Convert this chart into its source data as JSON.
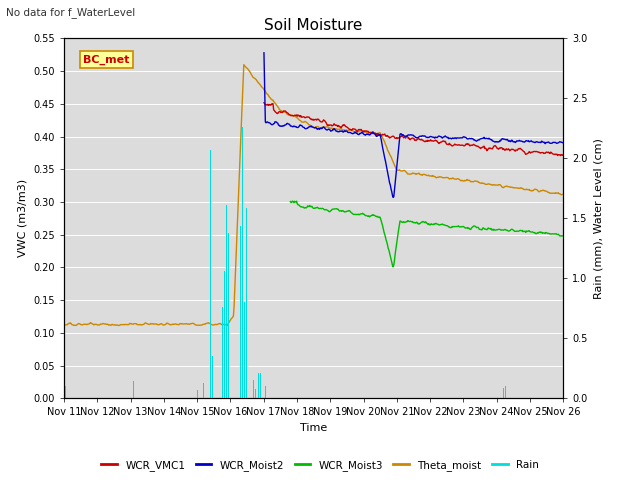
{
  "title": "Soil Moisture",
  "top_left_text": "No data for f_WaterLevel",
  "xlabel": "Time",
  "ylabel_left": "VWC (m3/m3)",
  "ylabel_right": "Rain (mm), Water Level (cm)",
  "ylim_left": [
    0.0,
    0.55
  ],
  "ylim_right": [
    0.0,
    3.0
  ],
  "yticks_left": [
    0.0,
    0.05,
    0.1,
    0.15,
    0.2,
    0.25,
    0.3,
    0.35,
    0.4,
    0.45,
    0.5,
    0.55
  ],
  "yticks_right": [
    0.0,
    0.5,
    1.0,
    1.5,
    2.0,
    2.5,
    3.0
  ],
  "plot_bg_color": "#dcdcdc",
  "legend_entries": [
    "WCR_VMC1",
    "WCR_Moist2",
    "WCR_Moist3",
    "Theta_moist",
    "Rain"
  ],
  "legend_colors": [
    "#cc0000",
    "#0000cc",
    "#00bb00",
    "#cc8800",
    "#00dddd"
  ],
  "box_label": "BC_met",
  "box_facecolor": "#ffff99",
  "box_edgecolor": "#cc8800",
  "title_fontsize": 11,
  "tick_fontsize": 7,
  "label_fontsize": 8,
  "figsize": [
    6.4,
    4.8
  ],
  "dpi": 100
}
